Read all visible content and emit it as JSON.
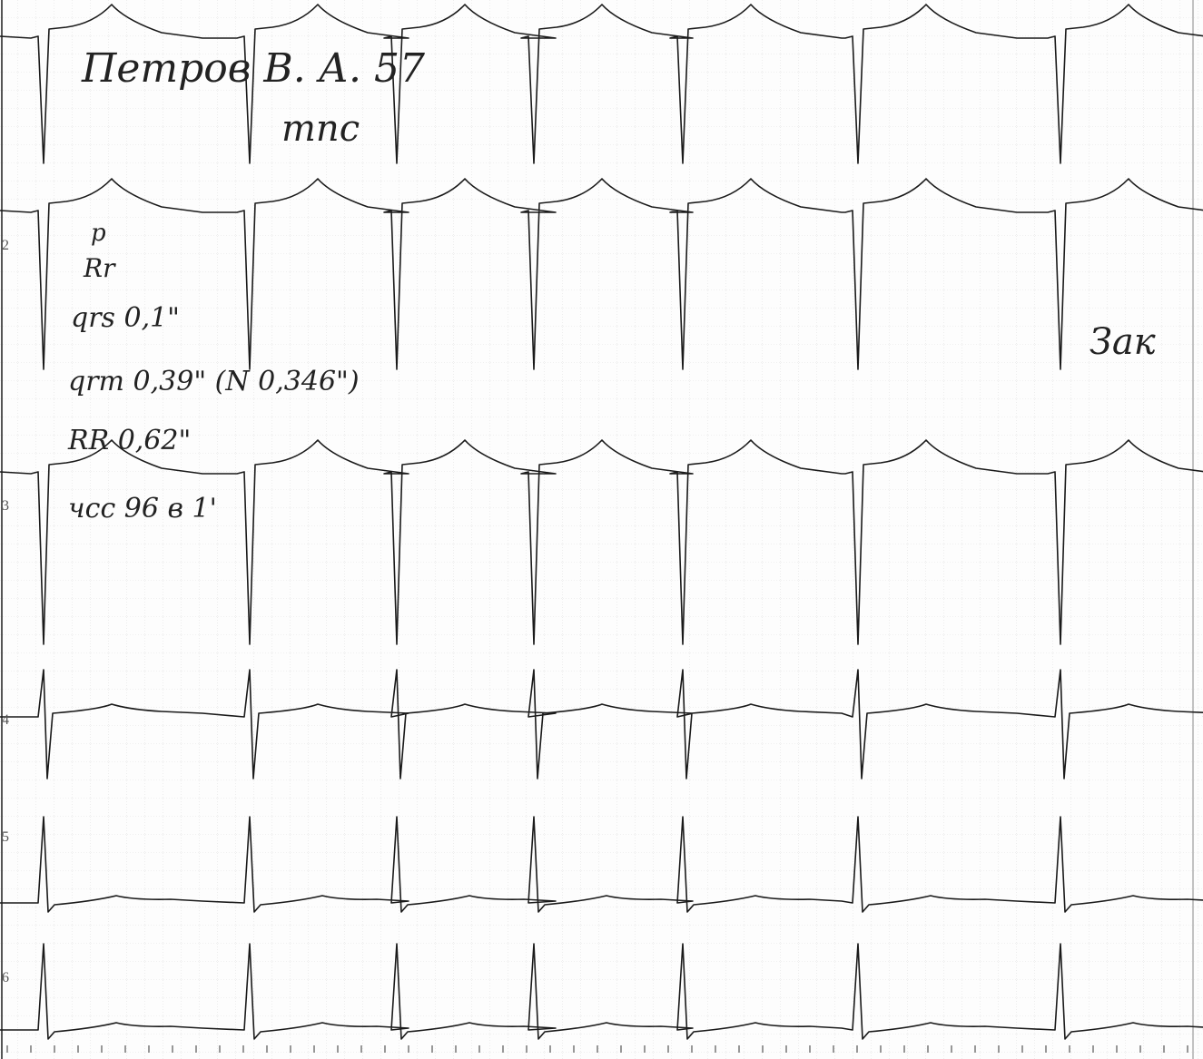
{
  "header": {
    "name": "Петров В. А. 57",
    "note": "тпс"
  },
  "notes": [
    "р",
    "Rr",
    "qrs 0,1\"",
    "qrт 0,39\" (N 0,346\")",
    "RR 0,62\"",
    "чсс 96 в 1'"
  ],
  "side_note": "Зак",
  "leads": [
    "2",
    "3",
    "4",
    "5",
    "6"
  ]
}
